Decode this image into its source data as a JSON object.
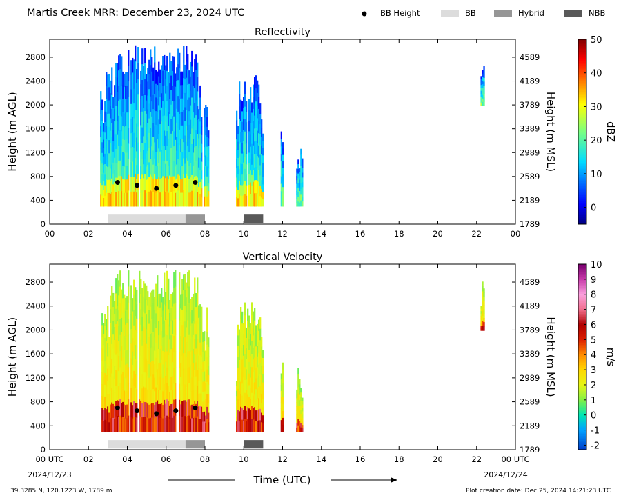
{
  "figure": {
    "title": "Martis Creek MRR:  December 23, 2024 UTC",
    "legend": [
      {
        "label": "BB Height",
        "kind": "dot",
        "color": "#000000"
      },
      {
        "label": "BB",
        "kind": "swatch",
        "color": "#dcdcdc"
      },
      {
        "label": "Hybrid",
        "kind": "swatch",
        "color": "#969696"
      },
      {
        "label": "NBB",
        "kind": "swatch",
        "color": "#595959"
      }
    ],
    "xlabel": "Time (UTC)",
    "x_start_label": "2024/12/23",
    "x_end_label": "2024/12/24",
    "footer_left": "39.3285 N, 120.1223 W, 1789 m",
    "footer_right": "Plot creation date: Dec 25, 2024 14:21:23 UTC"
  },
  "chart_data": [
    {
      "type": "heatmap",
      "title": "Reflectivity",
      "ylabel": "Height (m AGL)",
      "ylabel_right": "Height (m MSL)",
      "xlim": [
        0,
        24
      ],
      "ylim": [
        0,
        3100
      ],
      "x_ticks": [
        "00",
        "02",
        "04",
        "06",
        "08",
        "10",
        "12",
        "14",
        "16",
        "18",
        "20",
        "22",
        "00"
      ],
      "y_ticks": [
        "0",
        "400",
        "800",
        "1200",
        "1600",
        "2000",
        "2400",
        "2800"
      ],
      "y_ticks_right": [
        "1789",
        "2189",
        "2589",
        "2989",
        "3389",
        "3789",
        "4189",
        "4589"
      ],
      "colorbar": {
        "label": "dBZ",
        "min": -5,
        "max": 50,
        "ticks": [
          "0",
          "10",
          "20",
          "30",
          "40",
          "50"
        ],
        "colormap": "jet"
      },
      "bright_band_height": [
        {
          "time": 3.5,
          "height": 700
        },
        {
          "time": 4.5,
          "height": 650
        },
        {
          "time": 5.5,
          "height": 600
        },
        {
          "time": 6.5,
          "height": 650
        },
        {
          "time": 7.5,
          "height": 700
        }
      ],
      "bright_band_type": [
        {
          "start": 3.0,
          "end": 7.0,
          "type": "BB"
        },
        {
          "start": 7.0,
          "end": 8.0,
          "type": "Hybrid"
        },
        {
          "start": 10.0,
          "end": 11.0,
          "type": "NBB"
        }
      ],
      "echo_regions": [
        {
          "start": 2.6,
          "end": 8.2,
          "top": 3000,
          "bottom": 300
        },
        {
          "start": 9.6,
          "end": 11.0,
          "top": 2500,
          "bottom": 300
        },
        {
          "start": 11.9,
          "end": 12.0,
          "top": 1700,
          "bottom": 300
        },
        {
          "start": 12.7,
          "end": 13.0,
          "top": 1400,
          "bottom": 300
        },
        {
          "start": 22.2,
          "end": 22.4,
          "top": 3000,
          "bottom": 1990
        }
      ]
    },
    {
      "type": "heatmap",
      "title": "Vertical Velocity",
      "ylabel": "Height (m AGL)",
      "ylabel_right": "Height (m MSL)",
      "xlim": [
        0,
        24
      ],
      "ylim": [
        0,
        3100
      ],
      "x_ticks": [
        "00 UTC",
        "02",
        "04",
        "06",
        "08",
        "10",
        "12",
        "14",
        "16",
        "18",
        "20",
        "22",
        "00 UTC"
      ],
      "y_ticks": [
        "0",
        "400",
        "800",
        "1200",
        "1600",
        "2000",
        "2400",
        "2800"
      ],
      "y_ticks_right": [
        "1789",
        "2189",
        "2589",
        "2989",
        "3389",
        "3789",
        "4189",
        "4589"
      ],
      "colorbar": {
        "label": "m/s",
        "min": -2.3,
        "max": 10,
        "ticks": [
          "-2",
          "-1",
          "0",
          "1",
          "2",
          "3",
          "4",
          "5",
          "6",
          "7",
          "8",
          "9",
          "10"
        ],
        "colormap": "velocity"
      },
      "bright_band_height": [
        {
          "time": 3.5,
          "height": 700
        },
        {
          "time": 4.5,
          "height": 650
        },
        {
          "time": 5.5,
          "height": 600
        },
        {
          "time": 6.5,
          "height": 650
        },
        {
          "time": 7.5,
          "height": 700
        }
      ],
      "bright_band_type": [
        {
          "start": 3.0,
          "end": 7.0,
          "type": "BB"
        },
        {
          "start": 7.0,
          "end": 8.0,
          "type": "Hybrid"
        },
        {
          "start": 10.0,
          "end": 11.0,
          "type": "NBB"
        }
      ],
      "echo_regions": [
        {
          "start": 2.6,
          "end": 8.2,
          "top": 3000,
          "bottom": 300
        },
        {
          "start": 9.6,
          "end": 11.0,
          "top": 2500,
          "bottom": 300
        },
        {
          "start": 11.9,
          "end": 12.0,
          "top": 1700,
          "bottom": 300
        },
        {
          "start": 12.7,
          "end": 13.0,
          "top": 1400,
          "bottom": 300
        },
        {
          "start": 22.2,
          "end": 22.4,
          "top": 3000,
          "bottom": 1990
        }
      ]
    }
  ]
}
